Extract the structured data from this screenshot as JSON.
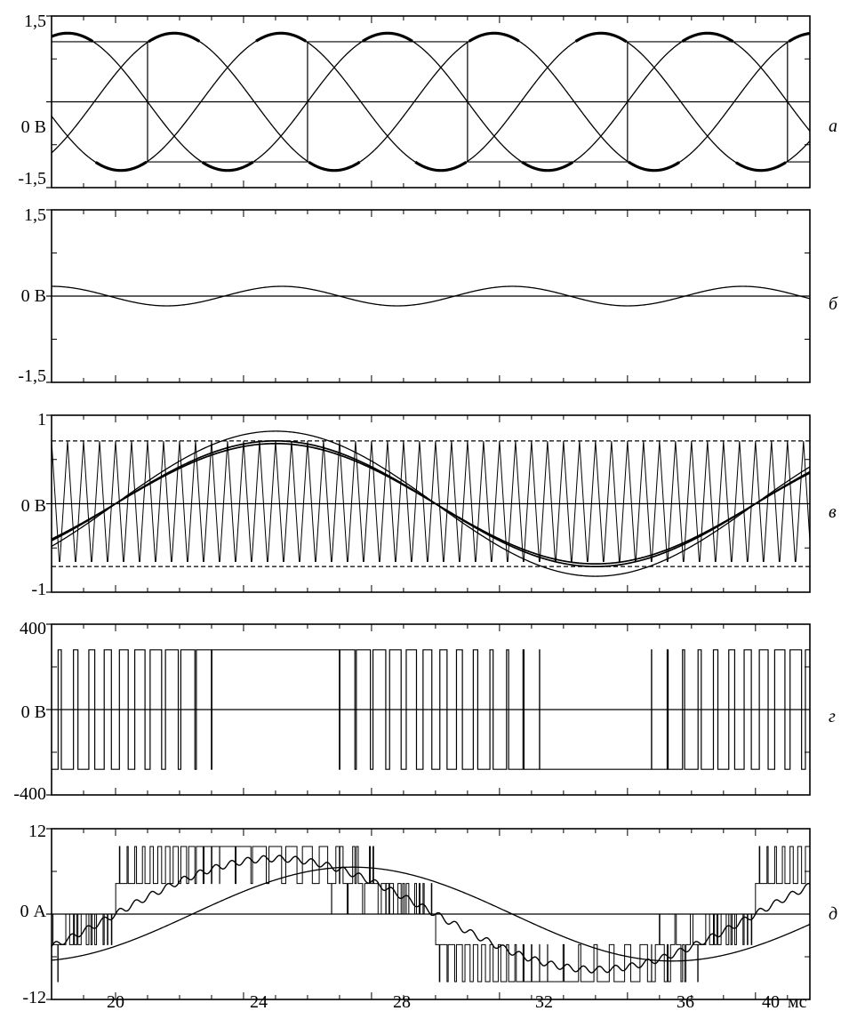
{
  "chart_data": [
    {
      "type": "line",
      "panel_label": "а",
      "ylim": [
        -1.5,
        1.5
      ],
      "y_ticks": [
        1.5,
        0,
        -1.5
      ],
      "y_tick_labels": [
        "1,5",
        "0 В",
        "-1,5"
      ],
      "xlim": [
        18,
        41.7
      ],
      "series": [
        {
          "kind": "sine",
          "amplitude": 1.2,
          "period_ms": 10,
          "phase_deg": 0
        },
        {
          "kind": "sine",
          "amplitude": 1.2,
          "period_ms": 10,
          "phase_deg": -120
        },
        {
          "kind": "sine",
          "amplitude": 1.2,
          "period_ms": 10,
          "phase_deg": 120
        },
        {
          "kind": "envelope",
          "bold": true,
          "note": "top and bottom envelope of the three sine waves"
        },
        {
          "kind": "square",
          "level": 1.05,
          "period_ms": 10,
          "phase_deg": 0
        }
      ]
    },
    {
      "type": "line",
      "panel_label": "б",
      "ylim": [
        -1.5,
        1.5
      ],
      "y_ticks": [
        1.5,
        0,
        -1.5
      ],
      "y_tick_labels": [
        "1,5",
        "0 В",
        "-1,5"
      ],
      "xlim": [
        18,
        41.7
      ],
      "series": [
        {
          "kind": "sine",
          "amplitude": 0.17,
          "period_ms": 7.2,
          "phase_deg": 90
        }
      ]
    },
    {
      "type": "line",
      "panel_label": "в",
      "ylim": [
        -1,
        1
      ],
      "y_ticks": [
        1,
        0,
        -1
      ],
      "y_tick_labels": [
        "1",
        "0 В",
        "-1"
      ],
      "xlim": [
        18,
        41.7
      ],
      "carrier": {
        "kind": "triangle",
        "amplitude": 0.71,
        "period_ms": 0.5
      },
      "limits": [
        0.71,
        -0.71
      ],
      "series": [
        {
          "kind": "sine",
          "amplitude": 0.82,
          "period_ms": 20,
          "zero_ms": 20
        },
        {
          "kind": "sine",
          "amplitude": 0.71,
          "period_ms": 20,
          "zero_ms": 20,
          "clipped": true
        },
        {
          "kind": "sine",
          "amplitude": 0.68,
          "period_ms": 20,
          "zero_ms": 20
        }
      ]
    },
    {
      "type": "line",
      "panel_label": "г",
      "ylim": [
        -400,
        400
      ],
      "y_ticks": [
        400,
        0,
        -400
      ],
      "y_tick_labels": [
        "400",
        "0 В",
        "-400"
      ],
      "xlim": [
        18,
        41.7
      ],
      "series": [
        {
          "kind": "pwm",
          "high": 280,
          "low": -280,
          "period_ms": 0.5,
          "reference_amplitude": 0.82,
          "reference_zero_ms": 20
        }
      ]
    },
    {
      "type": "line",
      "panel_label": "д",
      "ylim": [
        -12,
        12
      ],
      "y_ticks": [
        12,
        0,
        -12
      ],
      "y_tick_labels": [
        "12",
        "0 А",
        "-12"
      ],
      "x_ticks": [
        20,
        24,
        28,
        32,
        36,
        40
      ],
      "x_tick_labels": [
        "20",
        "24",
        "28",
        "32",
        "36",
        "40"
      ],
      "x_unit": "мс",
      "xlim": [
        18,
        41.7
      ],
      "series": [
        {
          "kind": "sine",
          "amplitude": 6.6,
          "period_ms": 20,
          "zero_ms": 22.4
        },
        {
          "kind": "ripple_sine",
          "amplitude": 7.8,
          "period_ms": 20,
          "zero_ms": 20
        },
        {
          "kind": "stepped_pwm",
          "levels": [
            -9.5,
            -4.3,
            0,
            4.3,
            9.5
          ]
        }
      ]
    }
  ]
}
